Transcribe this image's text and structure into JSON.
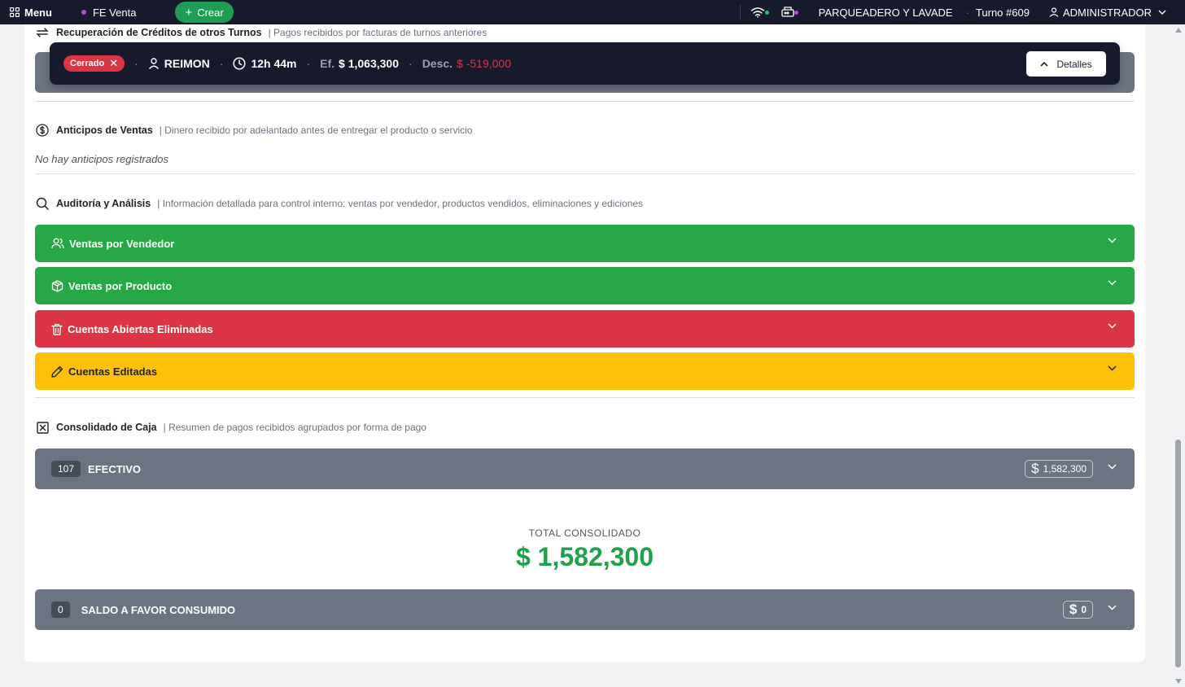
{
  "topbar": {
    "menu_label": "Menu",
    "fe_label": "FE Venta",
    "crear_label": "Crear",
    "business": "PARQUEADERO Y LAVADE",
    "turno": "Turno #609",
    "user": "ADMINISTRADOR",
    "wifi_badge_color": "#22c55e",
    "printer_badge_color": "#b14fd9"
  },
  "shift": {
    "status": "Cerrado",
    "user": "REIMON",
    "duration": "12h 44m",
    "efectivo_label": "Ef.",
    "efectivo_value": "$ 1,063,300",
    "descuento_label": "Desc.",
    "descuento_value": "$ -519,000",
    "details_label": "Detalles"
  },
  "sections": {
    "recuperacion": {
      "title": "Recuperación de Créditos de otros Turnos",
      "desc": "Pagos recibidos por facturas de turnos anteriores"
    },
    "anticipos": {
      "title": "Anticipos de Ventas",
      "desc": "Dinero recibido por adelantado antes de entregar el producto o servicio",
      "empty": "No hay anticipos registrados"
    },
    "auditoria": {
      "title": "Auditoría y Análisis",
      "desc": "Información detallada para control interno: ventas por vendedor, productos vendidos, eliminaciones y ediciones",
      "items": [
        {
          "label": "Ventas por Vendedor",
          "color": "#28a745",
          "icon": "users-icon"
        },
        {
          "label": "Ventas por Producto",
          "color": "#28a745",
          "icon": "box-icon"
        },
        {
          "label": "Cuentas Abiertas Eliminadas",
          "color": "#dc3545",
          "icon": "trash-icon"
        },
        {
          "label": "Cuentas Editadas",
          "color": "#ffc107",
          "icon": "pencil-icon"
        }
      ]
    },
    "consolidado": {
      "title": "Consolidado de Caja",
      "desc": "Resumen de pagos recibidos agrupados por forma de pago",
      "payments": [
        {
          "count": "107",
          "name": "EFECTIVO",
          "amount": "1,582,300"
        }
      ],
      "total_label": "TOTAL CONSOLIDADO",
      "total_value": "$ 1,582,300",
      "saldo": {
        "count": "0",
        "name": "SALDO A FAVOR CONSUMIDO",
        "amount": "0"
      }
    }
  }
}
